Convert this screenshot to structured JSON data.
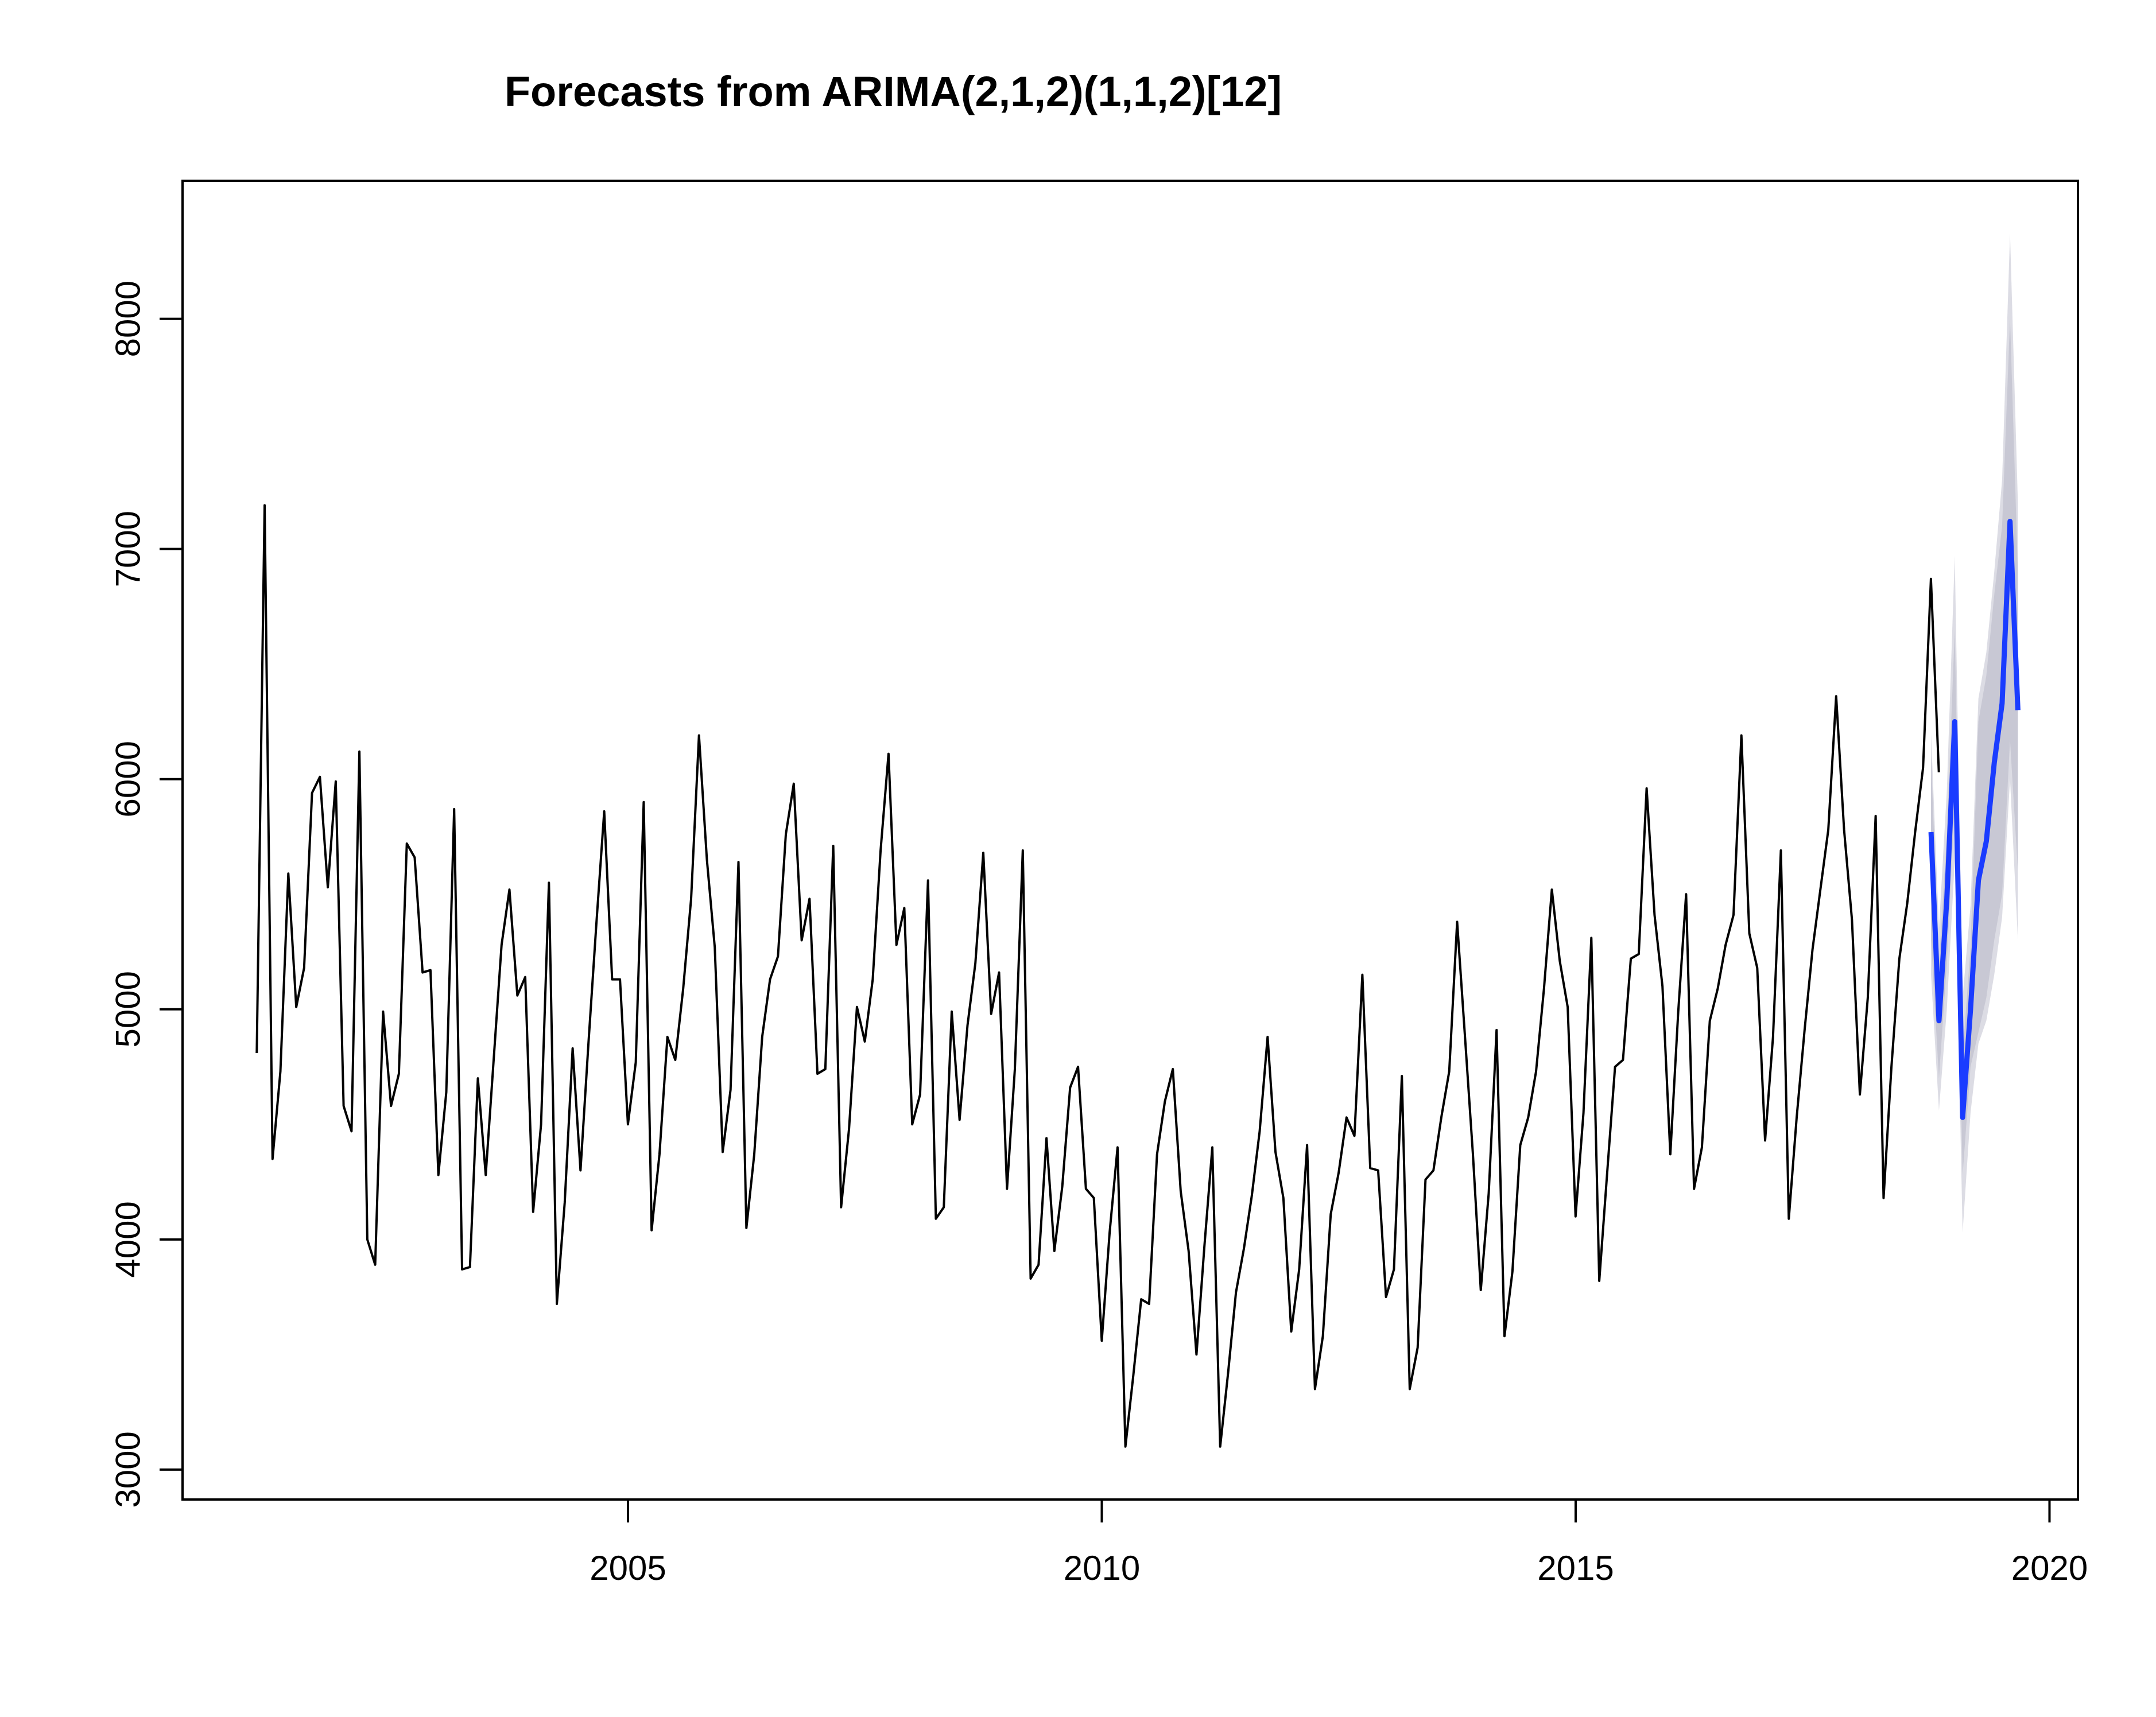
{
  "chart_data": {
    "type": "line",
    "title": "Forecasts from ARIMA(2,1,2)(1,1,2)[12]",
    "xlabel": "",
    "ylabel": "",
    "xlim": [
      2000.3,
      2020.3
    ],
    "ylim": [
      2870,
      8600
    ],
    "x_ticks": [
      2005,
      2010,
      2015,
      2020
    ],
    "y_ticks": [
      3000,
      4000,
      5000,
      6000,
      7000,
      8000
    ],
    "grid": false,
    "legend": "none",
    "colors": {
      "history": "#000000",
      "forecast": "#1a3cff",
      "interval_outer": "#dcdce4",
      "interval_inner": "#c8c8d4"
    },
    "history": {
      "start": 2001.083,
      "step": 0.08333,
      "values": [
        4810,
        7190,
        4350,
        4730,
        5590,
        5010,
        5180,
        5940,
        6010,
        5530,
        5990,
        4580,
        4470,
        6120,
        4000,
        3890,
        4990,
        4580,
        4720,
        5720,
        5660,
        5160,
        5170,
        4280,
        4640,
        5870,
        3870,
        3880,
        4700,
        4280,
        4780,
        5280,
        5520,
        5060,
        5140,
        4120,
        4500,
        5550,
        3720,
        4160,
        4830,
        4300,
        4850,
        5370,
        5860,
        5130,
        5130,
        4500,
        4770,
        5900,
        4040,
        4370,
        4880,
        4780,
        5090,
        5480,
        6190,
        5650,
        5270,
        4380,
        4650,
        5640,
        4050,
        4370,
        4880,
        5130,
        5230,
        5760,
        5980,
        5300,
        5480,
        4720,
        4740,
        5710,
        4140,
        4480,
        5010,
        4860,
        5130,
        5690,
        6110,
        5280,
        5440,
        4500,
        4630,
        5560,
        4090,
        4140,
        4990,
        4520,
        4930,
        5200,
        5680,
        4980,
        5160,
        4220,
        4740,
        5690,
        3830,
        3890,
        4440,
        3950,
        4230,
        4660,
        4750,
        4220,
        4180,
        3560,
        4030,
        4400,
        3100,
        3410,
        3740,
        3720,
        4370,
        4600,
        4740,
        4210,
        3950,
        3500,
        3970,
        4400,
        3100,
        3420,
        3770,
        3960,
        4190,
        4470,
        4880,
        4380,
        4180,
        3600,
        3870,
        4410,
        3350,
        3580,
        4110,
        4290,
        4530,
        4450,
        5150,
        4310,
        4300,
        3750,
        3870,
        4710,
        3350,
        3530,
        4260,
        4300,
        4530,
        4730,
        5380,
        4880,
        4370,
        3780,
        4200,
        4910,
        3580,
        3860,
        4410,
        4530,
        4730,
        5090,
        5520,
        5210,
        5010,
        4100,
        4550,
        5310,
        3820,
        4290,
        4750,
        4780,
        5220,
        5240,
        5960,
        5410,
        5100,
        4370,
        4990,
        5500,
        4220,
        4400,
        4950,
        5090,
        5280,
        5410,
        6190,
        5330,
        5180,
        4430,
        4880,
        5690,
        4090,
        4530,
        4910,
        5260,
        5520,
        5780,
        6360,
        5780,
        5390,
        4630,
        5050,
        5840,
        4180,
        4750,
        5220,
        5460,
        5770,
        6050,
        6870,
        6030
      ]
    },
    "forecast": {
      "start": 2018.75,
      "step": 0.08333,
      "mean": [
        5770,
        4950,
        5480,
        6250,
        4530,
        5000,
        5560,
        5730,
        6070,
        6330,
        7120,
        6300
      ],
      "lo80": [
        5300,
        4700,
        5200,
        5900,
        4280,
        4750,
        4900,
        5050,
        5300,
        5500,
        6170,
        5600
      ],
      "hi80": [
        6100,
        5200,
        5750,
        6650,
        4800,
        5270,
        6250,
        6450,
        6800,
        7100,
        8000,
        6900
      ],
      "lo95": [
        5150,
        4560,
        5000,
        5650,
        4030,
        4550,
        4850,
        4950,
        5150,
        5400,
        6000,
        5300
      ],
      "hi95": [
        6200,
        5350,
        5950,
        6970,
        5050,
        5450,
        6350,
        6550,
        6900,
        7300,
        8370,
        7200
      ]
    }
  }
}
